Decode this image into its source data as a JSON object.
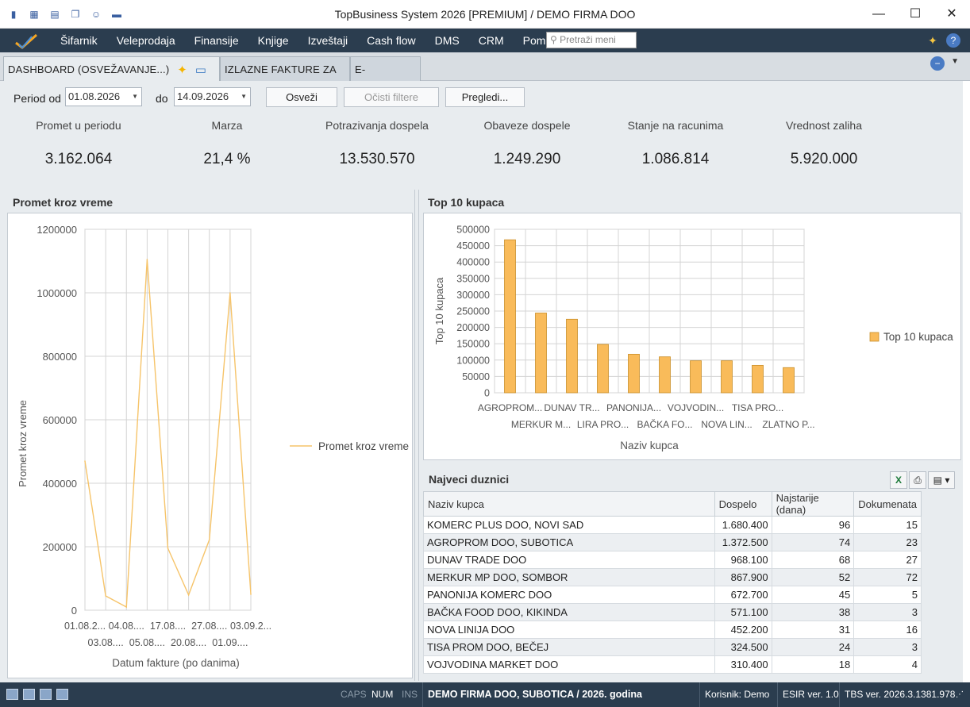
{
  "window": {
    "title": "TopBusiness System 2026 [PREMIUM] / DEMO FIRMA DOO",
    "controls": {
      "minimize": "—",
      "maximize": "☐",
      "close": "✕"
    }
  },
  "menu": {
    "items": [
      "Šifarnik",
      "Veleprodaja",
      "Finansije",
      "Knjige",
      "Izveštaji",
      "Cash flow",
      "DMS",
      "CRM",
      "Pomoć"
    ],
    "search_placeholder": "Pretraži meni"
  },
  "tabs": [
    {
      "label": "DASHBOARD  (OSVEŽAVANJE...)",
      "active": true
    },
    {
      "label": "IZLAZNE FAKTURE ZA ROBU",
      "active": false
    },
    {
      "label": "E-DOKUMENTI",
      "active": false
    }
  ],
  "filters": {
    "period_from_label": "Period od",
    "period_from": "01.08.2026",
    "to_label": "do",
    "period_to": "14.09.2026",
    "refresh_button": "Osveži",
    "clear_button": "Očisti filtere",
    "preview_button": "Pregledi..."
  },
  "kpis": [
    {
      "label": "Promet u periodu",
      "value": "3.162.064"
    },
    {
      "label": "Marza",
      "value": "21,4 %"
    },
    {
      "label": "Potrazivanja dospela",
      "value": "13.530.570"
    },
    {
      "label": "Obaveze dospele",
      "value": "1.249.290"
    },
    {
      "label": "Stanje na racunima",
      "value": "1.086.814"
    },
    {
      "label": "Vrednost zaliha",
      "value": "5.920.000"
    }
  ],
  "line_panel": {
    "title": "Promet kroz vreme"
  },
  "bar_panel": {
    "title": "Top 10 kupaca"
  },
  "chart_data": [
    {
      "type": "line",
      "ylabel": "Promet kroz vreme",
      "xlabel": "Datum fakture (po danima)",
      "legend": "right",
      "grid": true,
      "ylim": [
        0,
        1200000
      ],
      "yticks": [
        0,
        200000,
        400000,
        600000,
        800000,
        1000000,
        1200000
      ],
      "xtick_labels": [
        "01.08.2...",
        "03.08....",
        "04.08....",
        "05.08....",
        "17.08....",
        "20.08....",
        "27.08....",
        "01.09....",
        "03.09.2..."
      ],
      "series": [
        {
          "name": "Promet kroz vreme",
          "color": "#f6c46a",
          "values": [
            470000,
            45000,
            10000,
            1105000,
            195000,
            48000,
            222000,
            1000000,
            50000
          ]
        }
      ]
    },
    {
      "type": "bar",
      "ylabel": "Top 10 kupaca",
      "xlabel": "Naziv kupca",
      "legend": "right",
      "grid": true,
      "ylim": [
        0,
        500000
      ],
      "yticks": [
        0,
        50000,
        100000,
        150000,
        200000,
        250000,
        300000,
        350000,
        400000,
        450000,
        500000
      ],
      "categories": [
        "AGROPROM...",
        "MERKUR M...",
        "DUNAV TR...",
        "LIRA PRO...",
        "PANONIJA...",
        "BAČKA FO...",
        "VOJVODIN...",
        "NOVA LIN...",
        "TISA PRO...",
        "ZLATNO P..."
      ],
      "series": [
        {
          "name": "Top 10 kupaca",
          "color": "#f9bb5a",
          "values": [
            468000,
            244000,
            225000,
            148000,
            118000,
            110000,
            98000,
            98000,
            84000,
            77000
          ]
        }
      ]
    }
  ],
  "debtors": {
    "title": "Najveci duznici",
    "columns": [
      "Naziv kupca",
      "Dospelo",
      "Najstarije (dana)",
      "Dokumenata"
    ],
    "rows": [
      [
        "KOMERC PLUS DOO, NOVI SAD",
        "1.680.400",
        "96",
        "15"
      ],
      [
        "AGROPROM DOO, SUBOTICA",
        "1.372.500",
        "74",
        "23"
      ],
      [
        "DUNAV TRADE DOO",
        "968.100",
        "68",
        "27"
      ],
      [
        "MERKUR MP DOO, SOMBOR",
        "867.900",
        "52",
        "72"
      ],
      [
        "PANONIJA KOMERC DOO",
        "672.700",
        "45",
        "5"
      ],
      [
        "BAČKA FOOD DOO, KIKINDA",
        "571.100",
        "38",
        "3"
      ],
      [
        "NOVA LINIJA DOO",
        "452.200",
        "31",
        "16"
      ],
      [
        "TISA PROM DOO, BEČEJ",
        "324.500",
        "24",
        "3"
      ],
      [
        "VOJVODINA MARKET DOO",
        "310.400",
        "18",
        "4"
      ]
    ]
  },
  "status": {
    "caps": "CAPS",
    "num": "NUM",
    "ins": "INS",
    "company": "DEMO FIRMA DOO, SUBOTICA / 2026. godina",
    "user": "Korisnik: Demo",
    "esir": "ESIR ver. 1.0",
    "tbs": "TBS ver. 2026.3.1381.978"
  }
}
